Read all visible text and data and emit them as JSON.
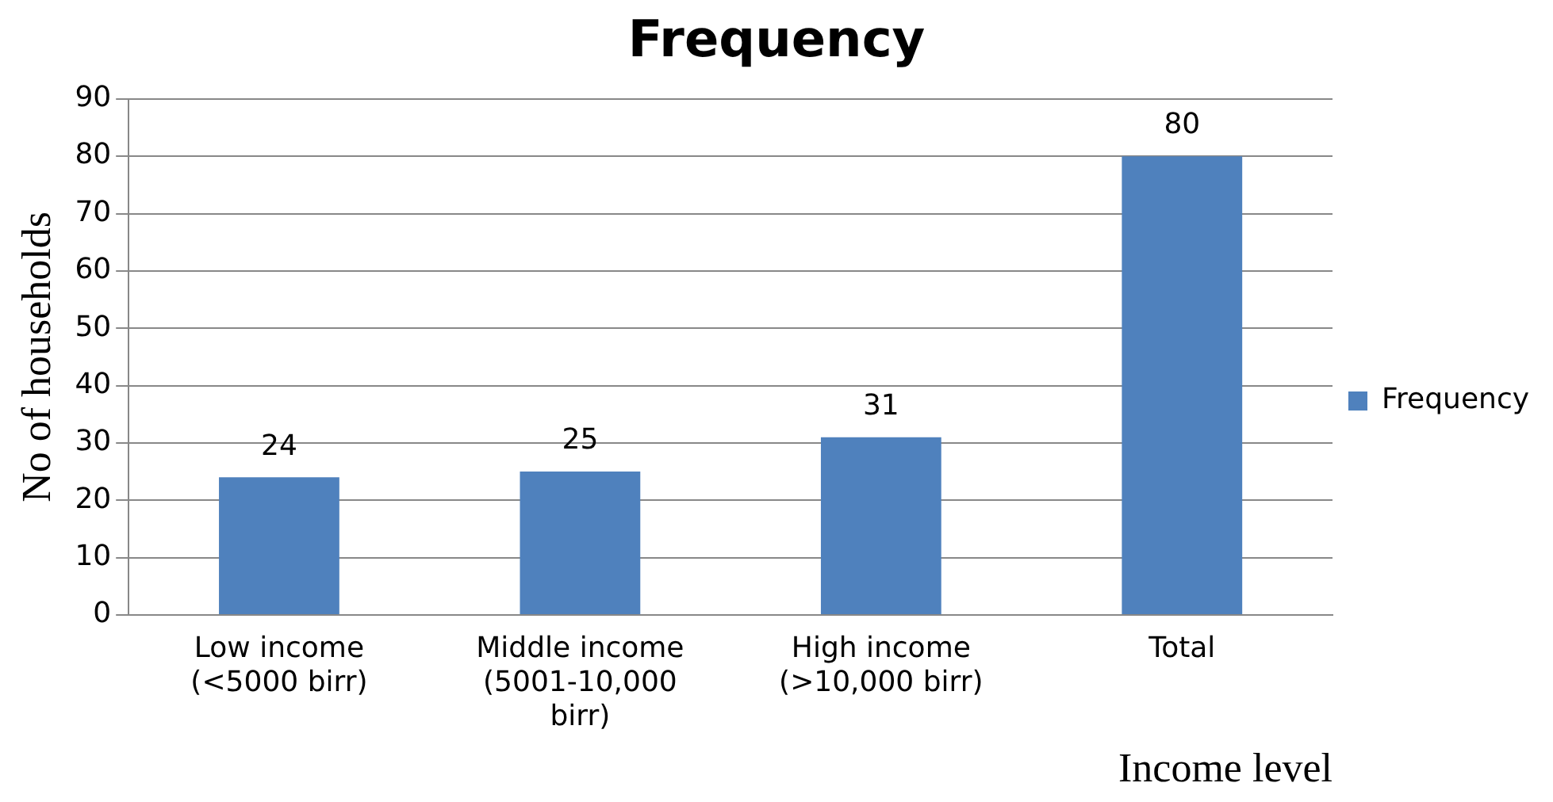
{
  "chart_data": {
    "type": "bar",
    "title": "Frequency",
    "xlabel": "Income level",
    "ylabel": "No of households",
    "categories": [
      "Low income (<5000 birr)",
      "Middle income (5001-10,000 birr)",
      "High income (>10,000 birr)",
      "Total"
    ],
    "series": [
      {
        "name": "Frequency",
        "color": "#4f81bd",
        "values": [
          24,
          25,
          31,
          80
        ]
      }
    ],
    "ylim": [
      0,
      90
    ],
    "yticks": [
      0,
      10,
      20,
      30,
      40,
      50,
      60,
      70,
      80,
      90
    ],
    "grid": "y",
    "legend": "right",
    "data_labels": true
  }
}
